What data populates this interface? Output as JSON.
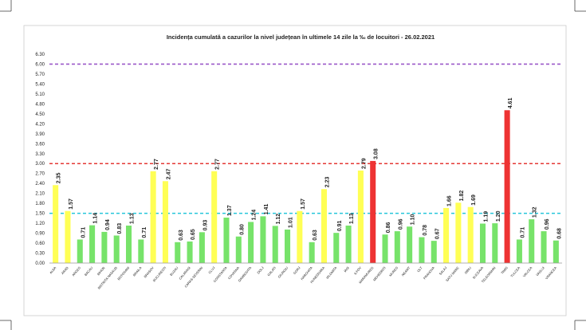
{
  "chart_data": {
    "type": "bar",
    "title": "Incidența cumulată a cazurilor la nivel județean în ultimele 14 zile   la ‰ de locuitori  - 26.02.2021",
    "xlabel": "",
    "ylabel": "",
    "ylim": [
      0,
      6.3
    ],
    "yticks": [
      "0.00",
      "0.30",
      "0.60",
      "0.90",
      "1.20",
      "1.50",
      "1.80",
      "2.10",
      "2.40",
      "2.70",
      "3.00",
      "3.30",
      "3.60",
      "3.90",
      "4.20",
      "4.50",
      "4.80",
      "5.10",
      "5.40",
      "5.70",
      "6.00",
      "6.30"
    ],
    "grid": false,
    "legend": "none",
    "categories": [
      "ALBA",
      "ARAD",
      "ARGES",
      "BACAU",
      "BIHOR",
      "BISTRITA NASAUD",
      "BOTOSANI",
      "BRAILA",
      "BRASOV",
      "BUCURESTI",
      "BUZAU",
      "CALARASI",
      "CARAS-SEVERIN",
      "CLUJ",
      "CONSTANTA",
      "COVASNA",
      "DAMBOVITA",
      "DOLJ",
      "GALATI",
      "GIURGIU",
      "GORJ",
      "HARGHITA",
      "HUNEDOARA",
      "IALOMITA",
      "IASI",
      "ILFOV",
      "MARAMURES",
      "MEHEDINTI",
      "MURES",
      "NEAMT",
      "OLT",
      "PRAHOVA",
      "SALAJ",
      "SATU MARE",
      "SIBIU",
      "SUCEAVA",
      "TELEORMAN",
      "TIMIS",
      "TULCEA",
      "VALCEA",
      "VASLUI",
      "VRANCEA"
    ],
    "values": [
      2.35,
      1.57,
      0.71,
      1.14,
      0.94,
      0.83,
      1.13,
      0.71,
      2.77,
      2.47,
      0.63,
      0.65,
      0.93,
      2.77,
      1.37,
      0.8,
      1.24,
      1.41,
      1.12,
      1.01,
      1.57,
      0.63,
      2.23,
      0.91,
      1.13,
      2.79,
      3.08,
      0.86,
      0.96,
      1.1,
      0.78,
      0.67,
      1.66,
      1.82,
      1.69,
      1.19,
      1.2,
      4.61,
      0.71,
      1.32,
      0.96,
      0.68
    ],
    "data_labels": [
      "2.35",
      "1.57",
      "0.71",
      "1.14",
      "0.94",
      "0.83",
      "1.13",
      "0.71",
      "2.77",
      "2.47",
      "0.63",
      "0.65",
      "0.93",
      "2.77",
      "1.37",
      "0.80",
      "1.24",
      "1.41",
      "1.12",
      "1.01",
      "1.57",
      "0.63",
      "2.23",
      "0.91",
      "1.13",
      "2.79",
      "3.08",
      "0.86",
      "0.96",
      "1.10",
      "0.78",
      "0.67",
      "1.66",
      "1.82",
      "1.69",
      "1.19",
      "1.20",
      "4.61",
      "0.71",
      "1.32",
      "0.96",
      "0.68"
    ],
    "thresholds": [
      {
        "value": 6.0,
        "color": "#9b59c9"
      },
      {
        "value": 3.0,
        "color": "#e53935"
      },
      {
        "value": 1.5,
        "color": "#26c6da"
      }
    ],
    "colors": {
      "green": "#77e36a",
      "yellow": "#ffff55",
      "red": "#ee3333",
      "axis": "#999999"
    }
  }
}
